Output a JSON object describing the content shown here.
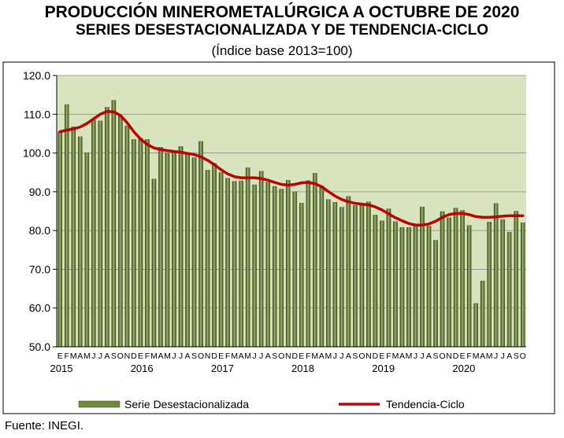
{
  "title_line1": "PRODUCCIÓN MINEROMETALÚRGICA A OCTUBRE DE 2020",
  "title_line2": "SERIES DESESTACIONALIZADA Y DE TENDENCIA-CICLO",
  "subtitle": "(Índice base 2013=100)",
  "source": "Fuente: INEGI.",
  "colors": {
    "bar": "#4f6228",
    "trend": "#c00000",
    "plot_bg": "#d7e4bd",
    "frame": "#000000"
  },
  "chart_data": {
    "type": "bar",
    "ylim": [
      50,
      120
    ],
    "yticks": [
      "50.0",
      "60.0",
      "70.0",
      "80.0",
      "90.0",
      "100.0",
      "110.0",
      "120.0"
    ],
    "month_labels": [
      "E",
      "F",
      "M",
      "A",
      "M",
      "J",
      "J",
      "A",
      "S",
      "O",
      "N",
      "D",
      "E",
      "F",
      "M",
      "A",
      "M",
      "J",
      "J",
      "A",
      "S",
      "O",
      "N",
      "D",
      "E",
      "F",
      "M",
      "A",
      "M",
      "J",
      "J",
      "A",
      "S",
      "O",
      "N",
      "D",
      "E",
      "F",
      "M",
      "A",
      "M",
      "J",
      "J",
      "A",
      "S",
      "O",
      "N",
      "D",
      "E",
      "F",
      "M",
      "A",
      "M",
      "J",
      "J",
      "A",
      "S",
      "O",
      "N",
      "D",
      "E",
      "F",
      "M",
      "A",
      "M",
      "J",
      "J",
      "A",
      "S",
      "O"
    ],
    "year_labels": [
      {
        "label": "2015",
        "index": 0
      },
      {
        "label": "2016",
        "index": 12
      },
      {
        "label": "2017",
        "index": 24
      },
      {
        "label": "2018",
        "index": 36
      },
      {
        "label": "2019",
        "index": 48
      },
      {
        "label": "2020",
        "index": 60
      }
    ],
    "series": [
      {
        "name": "Serie Desestacionalizada",
        "type": "bar",
        "values": [
          105.5,
          112.5,
          106.8,
          104.2,
          100.1,
          108.5,
          108.3,
          111.8,
          113.6,
          109.5,
          107.0,
          103.5,
          103.8,
          103.5,
          93.3,
          101.5,
          100.0,
          100.0,
          101.7,
          99.8,
          98.8,
          103.0,
          95.6,
          97.3,
          95.0,
          93.5,
          92.7,
          92.8,
          96.2,
          91.8,
          95.3,
          92.5,
          91.4,
          90.7,
          93.0,
          90.0,
          87.1,
          92.9,
          94.8,
          91.5,
          88.0,
          87.3,
          86.0,
          88.8,
          86.5,
          86.5,
          87.4,
          84.0,
          82.5,
          85.6,
          82.3,
          80.8,
          80.8,
          81.2,
          86.1,
          81.2,
          77.5,
          84.9,
          83.3,
          85.8,
          85.2,
          81.3,
          61.2,
          67.0,
          82.2,
          87.0,
          82.8,
          79.6,
          85.0,
          82.0
        ]
      },
      {
        "name": "Tendencia-Ciclo",
        "type": "line",
        "values": [
          105.5,
          105.9,
          106.2,
          106.7,
          107.6,
          108.8,
          110.0,
          110.7,
          110.6,
          109.7,
          107.8,
          105.5,
          103.6,
          102.2,
          101.3,
          100.9,
          100.6,
          100.4,
          100.2,
          99.9,
          99.6,
          99.0,
          98.1,
          97.0,
          95.7,
          94.6,
          93.9,
          93.6,
          93.6,
          93.6,
          93.4,
          93.0,
          92.4,
          91.9,
          91.7,
          91.9,
          92.3,
          92.4,
          92.1,
          91.3,
          90.1,
          88.9,
          88.0,
          87.4,
          87.0,
          86.8,
          86.6,
          86.1,
          85.3,
          84.3,
          83.3,
          82.5,
          81.8,
          81.4,
          81.4,
          81.7,
          82.4,
          83.4,
          84.1,
          84.4,
          84.4,
          84.1,
          83.6,
          83.4,
          83.4,
          83.5,
          83.7,
          83.8,
          83.8,
          83.8
        ]
      }
    ]
  }
}
